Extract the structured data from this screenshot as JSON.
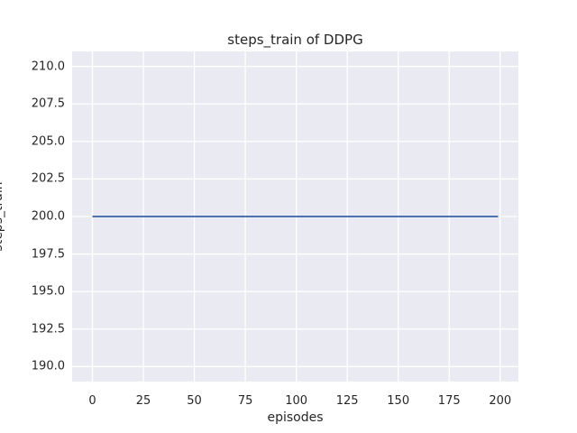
{
  "chart_data": {
    "type": "line",
    "title": "steps_train of DDPG",
    "xlabel": "episodes",
    "ylabel": "steps_train",
    "series": [
      {
        "name": "steps_train",
        "color": "#4c72b0",
        "linewidth": 2,
        "x": [
          0,
          199
        ],
        "y": [
          200,
          200
        ]
      }
    ],
    "xticks": [
      0,
      25,
      50,
      75,
      100,
      125,
      150,
      175,
      200
    ],
    "xtick_labels": [
      "0",
      "25",
      "50",
      "75",
      "100",
      "125",
      "150",
      "175",
      "200"
    ],
    "yticks": [
      190.0,
      192.5,
      195.0,
      197.5,
      200.0,
      202.5,
      205.0,
      207.5,
      210.0
    ],
    "ytick_labels": [
      "190.0",
      "192.5",
      "195.0",
      "197.5",
      "200.0",
      "202.5",
      "205.0",
      "207.5",
      "210.0"
    ],
    "xlim": [
      -9.95,
      208.95
    ],
    "ylim": [
      189.0,
      211.0
    ],
    "grid": true,
    "legend": false,
    "style": {
      "figure_bg": "#ffffff",
      "plot_bg": "#eaeaf2",
      "grid_color": "#ffffff",
      "text_color": "#262626"
    }
  }
}
